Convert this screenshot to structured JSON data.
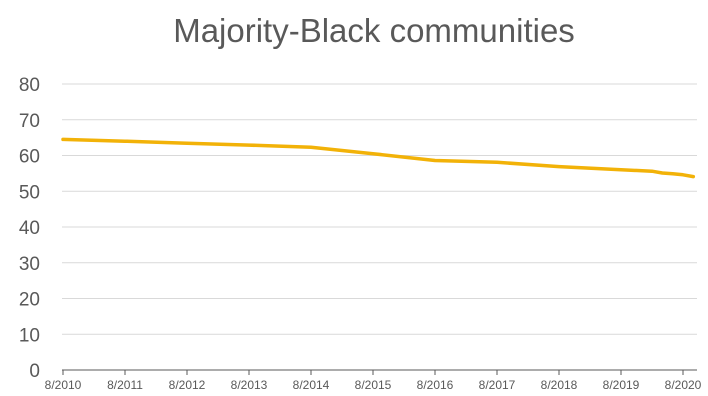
{
  "chart_data": {
    "type": "line",
    "title": "Majority-Black communities",
    "xlabel": "",
    "ylabel": "",
    "ylim": [
      0,
      80
    ],
    "yticks": [
      "0",
      "10",
      "20",
      "30",
      "40",
      "50",
      "60",
      "70",
      "80"
    ],
    "xticks": [
      "8/2010",
      "8/2011",
      "8/2012",
      "8/2013",
      "8/2014",
      "8/2015",
      "8/2016",
      "8/2017",
      "8/2018",
      "8/2019",
      "8/2020"
    ],
    "grid": true,
    "legend": "none",
    "series": [
      {
        "color": "#f2b208",
        "points": [
          {
            "x": "2010-08",
            "y": 64.5
          },
          {
            "x": "2011-08",
            "y": 64.0
          },
          {
            "x": "2012-08",
            "y": 63.4
          },
          {
            "x": "2013-08",
            "y": 62.9
          },
          {
            "x": "2014-08",
            "y": 62.3
          },
          {
            "x": "2015-08",
            "y": 60.5
          },
          {
            "x": "2016-08",
            "y": 58.6
          },
          {
            "x": "2017-08",
            "y": 58.1
          },
          {
            "x": "2018-08",
            "y": 56.9
          },
          {
            "x": "2019-08",
            "y": 56.0
          },
          {
            "x": "2020-02",
            "y": 55.6
          },
          {
            "x": "2020-04",
            "y": 55.1
          },
          {
            "x": "2020-06",
            "y": 54.9
          },
          {
            "x": "2020-08",
            "y": 54.6
          },
          {
            "x": "2020-10",
            "y": 54.1
          }
        ]
      }
    ]
  }
}
